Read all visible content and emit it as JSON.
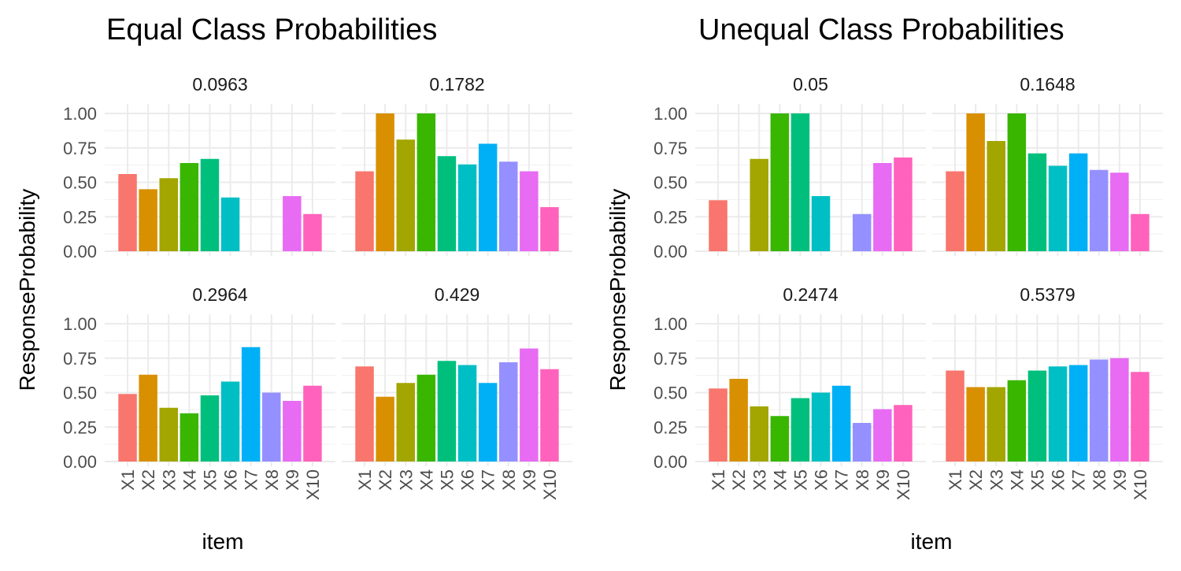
{
  "colors": [
    "#F8766D",
    "#D89000",
    "#A3A500",
    "#39B600",
    "#00BF7D",
    "#00BFC4",
    "#00B0F6",
    "#9590FF",
    "#E76BF3",
    "#FF62BC"
  ],
  "chart_data": [
    {
      "type": "bar",
      "title": "Equal Class Probabilities",
      "xlabel": "item",
      "ylabel": "ResponseProbability",
      "categories": [
        "X1",
        "X2",
        "X3",
        "X4",
        "X5",
        "X6",
        "X7",
        "X8",
        "X9",
        "X10"
      ],
      "ylim": [
        0,
        1
      ],
      "yticks": [
        "0.00",
        "0.25",
        "0.50",
        "0.75",
        "1.00"
      ],
      "grid": true,
      "legend": "none",
      "facets": [
        {
          "label": "0.0963",
          "values": [
            0.56,
            0.45,
            0.53,
            0.64,
            0.67,
            0.39,
            0.0,
            0.0,
            0.4,
            0.27
          ]
        },
        {
          "label": "0.1782",
          "values": [
            0.58,
            1.0,
            0.81,
            1.0,
            0.69,
            0.63,
            0.78,
            0.65,
            0.58,
            0.32
          ]
        },
        {
          "label": "0.2964",
          "values": [
            0.49,
            0.63,
            0.39,
            0.35,
            0.48,
            0.58,
            0.83,
            0.5,
            0.44,
            0.55
          ]
        },
        {
          "label": "0.429",
          "values": [
            0.69,
            0.47,
            0.57,
            0.63,
            0.73,
            0.7,
            0.57,
            0.72,
            0.82,
            0.67
          ]
        }
      ]
    },
    {
      "type": "bar",
      "title": "Unequal Class Probabilities",
      "xlabel": "item",
      "ylabel": "ResponseProbability",
      "categories": [
        "X1",
        "X2",
        "X3",
        "X4",
        "X5",
        "X6",
        "X7",
        "X8",
        "X9",
        "X10"
      ],
      "ylim": [
        0,
        1
      ],
      "yticks": [
        "0.00",
        "0.25",
        "0.50",
        "0.75",
        "1.00"
      ],
      "grid": true,
      "legend": "none",
      "facets": [
        {
          "label": "0.05",
          "values": [
            0.37,
            0.0,
            0.67,
            1.0,
            1.0,
            0.4,
            0.0,
            0.27,
            0.64,
            0.68
          ]
        },
        {
          "label": "0.1648",
          "values": [
            0.58,
            1.0,
            0.8,
            1.0,
            0.71,
            0.62,
            0.71,
            0.59,
            0.57,
            0.27
          ]
        },
        {
          "label": "0.2474",
          "values": [
            0.53,
            0.6,
            0.4,
            0.33,
            0.46,
            0.5,
            0.55,
            0.28,
            0.38,
            0.41
          ]
        },
        {
          "label": "0.5379",
          "values": [
            0.66,
            0.54,
            0.54,
            0.59,
            0.66,
            0.69,
            0.7,
            0.74,
            0.75,
            0.65
          ]
        }
      ]
    }
  ]
}
